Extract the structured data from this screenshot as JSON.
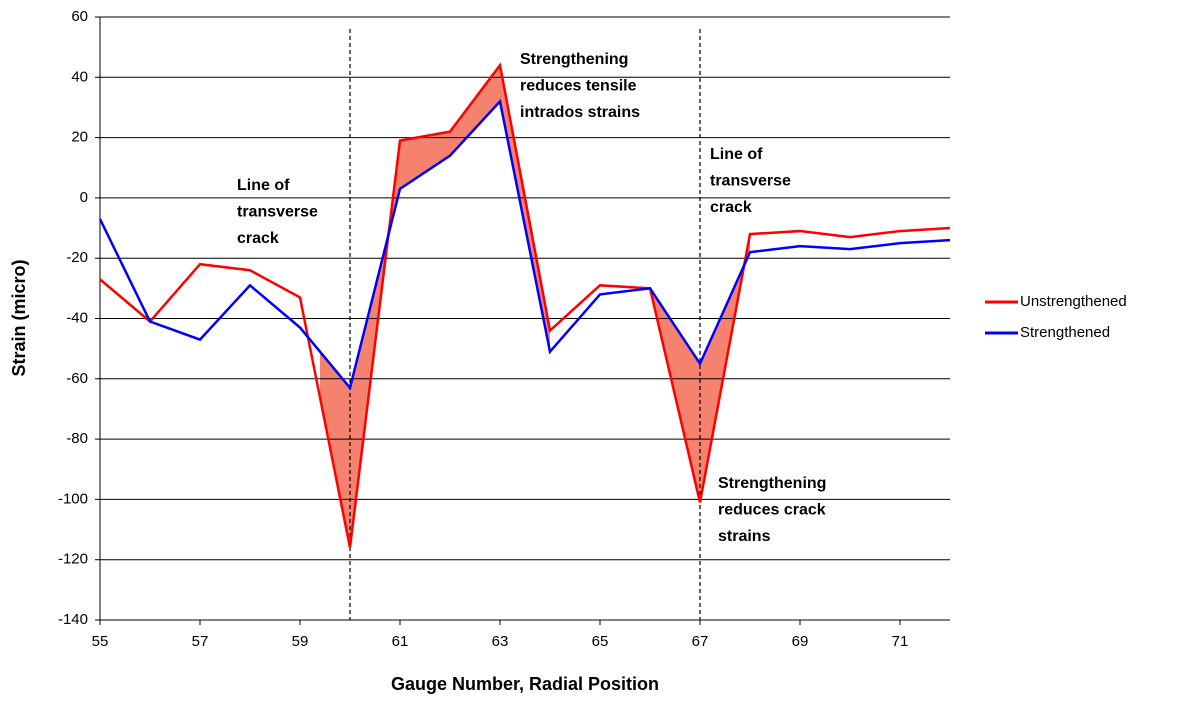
{
  "chart_data": {
    "type": "line",
    "x_label": "Gauge Number, Radial Position",
    "y_label": "Strain (micro)",
    "x": [
      55,
      56,
      57,
      58,
      59,
      60,
      61,
      62,
      63,
      64,
      65,
      66,
      67,
      68,
      69,
      70,
      71,
      72
    ],
    "series": [
      {
        "name": "Unstrengthened",
        "color": "#ff0000",
        "values": [
          -27,
          -41,
          -22,
          -24,
          -33,
          -116,
          19,
          22,
          44,
          -44,
          -29,
          -30,
          -101,
          -12,
          -11,
          -13,
          -11,
          -10
        ]
      },
      {
        "name": "Strengthened",
        "color": "#0000ff",
        "values": [
          -7,
          -41,
          -47,
          -29,
          -43,
          -63,
          3,
          14,
          32,
          -51,
          -32,
          -30,
          -55,
          -18,
          -16,
          -17,
          -15,
          -14
        ]
      }
    ],
    "xlim": [
      55,
      72
    ],
    "xticks": [
      55,
      57,
      59,
      61,
      63,
      65,
      67,
      69,
      71
    ],
    "ylim": [
      -140,
      60
    ],
    "yticks": [
      -140,
      -120,
      -100,
      -80,
      -60,
      -40,
      -20,
      0,
      20,
      40,
      60
    ],
    "grid": true,
    "legend": "right",
    "fill_between": {
      "color": "#f4826f",
      "ranges": [
        [
          59.4,
          61
        ],
        [
          61,
          64
        ],
        [
          66,
          68
        ]
      ]
    },
    "vlines": [
      60,
      67
    ],
    "annotations": [
      [
        "Line of",
        "transverse",
        "crack"
      ],
      [
        "Strengthening",
        "reduces tensile",
        "intrados strains"
      ],
      [
        "Line of",
        "transverse",
        "crack"
      ],
      [
        "Strengthening",
        "reduces crack",
        "strains"
      ]
    ]
  }
}
